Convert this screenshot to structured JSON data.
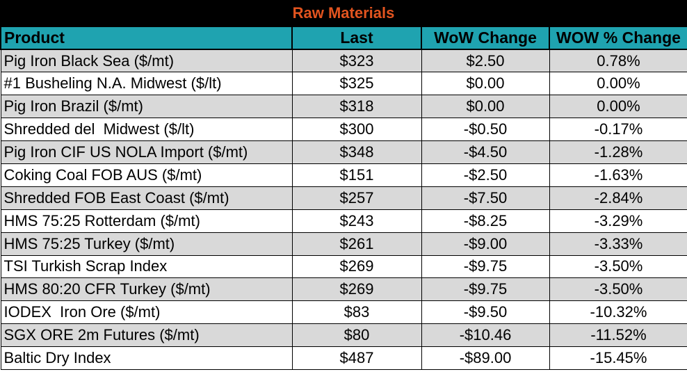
{
  "table": {
    "title": "Raw Materials",
    "title_color": "#e2541f",
    "header_bg": "#1fa3b0",
    "shaded_row_bg": "#d9d9d9",
    "columns": [
      "Product",
      "Last",
      "WoW Change",
      "WOW % Change"
    ],
    "rows": [
      {
        "product": "Pig Iron Black Sea ($/mt)",
        "last": "$323",
        "wow_change": "$2.50",
        "wow_pct": "0.78%"
      },
      {
        "product": "#1 Busheling N.A. Midwest ($/lt)",
        "last": "$325",
        "wow_change": "$0.00",
        "wow_pct": "0.00%"
      },
      {
        "product": "Pig Iron Brazil ($/mt)",
        "last": "$318",
        "wow_change": "$0.00",
        "wow_pct": "0.00%"
      },
      {
        "product": "Shredded del  Midwest ($/lt)",
        "last": "$300",
        "wow_change": "-$0.50",
        "wow_pct": "-0.17%"
      },
      {
        "product": "Pig Iron CIF US NOLA Import ($/mt)",
        "last": "$348",
        "wow_change": "-$4.50",
        "wow_pct": "-1.28%"
      },
      {
        "product": "Coking Coal FOB AUS ($/mt)",
        "last": "$151",
        "wow_change": "-$2.50",
        "wow_pct": "-1.63%"
      },
      {
        "product": "Shredded FOB East Coast ($/mt)",
        "last": "$257",
        "wow_change": "-$7.50",
        "wow_pct": "-2.84%"
      },
      {
        "product": "HMS 75:25 Rotterdam ($/mt)",
        "last": "$243",
        "wow_change": "-$8.25",
        "wow_pct": "-3.29%"
      },
      {
        "product": "HMS 75:25 Turkey ($/mt)",
        "last": "$261",
        "wow_change": "-$9.00",
        "wow_pct": "-3.33%"
      },
      {
        "product": "TSI Turkish Scrap Index",
        "last": "$269",
        "wow_change": "-$9.75",
        "wow_pct": "-3.50%"
      },
      {
        "product": "HMS 80:20 CFR Turkey ($/mt)",
        "last": "$269",
        "wow_change": "-$9.75",
        "wow_pct": "-3.50%"
      },
      {
        "product": "IODEX  Iron Ore ($/mt)",
        "last": "$83",
        "wow_change": "-$9.50",
        "wow_pct": "-10.32%"
      },
      {
        "product": "SGX ORE 2m Futures ($/mt)",
        "last": "$80",
        "wow_change": "-$10.46",
        "wow_pct": "-11.52%"
      },
      {
        "product": "Baltic Dry Index",
        "last": "$487",
        "wow_change": "-$89.00",
        "wow_pct": "-15.45%"
      }
    ]
  }
}
